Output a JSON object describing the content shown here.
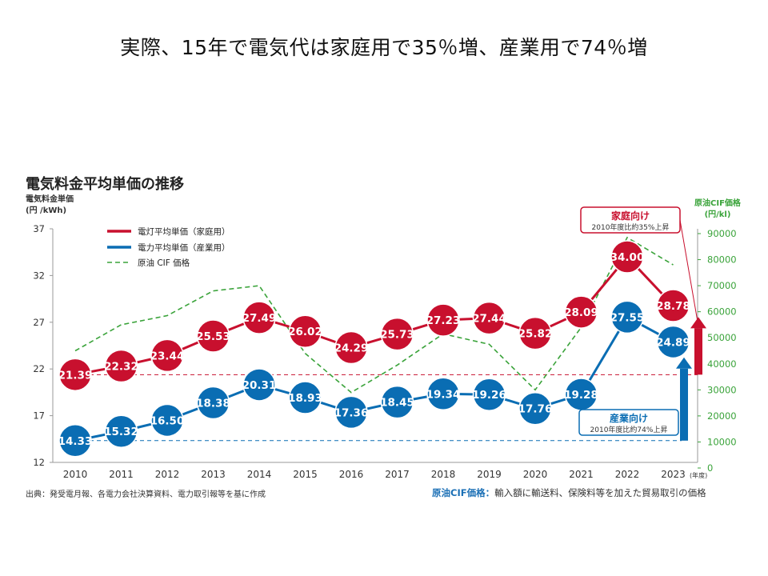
{
  "slide_title": "実際、15年で電気代は家庭用で35％増、産業用で74％増",
  "chart_data": {
    "type": "line",
    "title": "電気料金平均単価の推移",
    "ylabel_left_line1": "電気料金単価",
    "ylabel_left_line2": "(円 /kWh)",
    "ylabel_right_line1": "原油CIF価格",
    "ylabel_right_line2": "(円/kl)",
    "x_suffix": "(年度)",
    "categories": [
      "2010",
      "2011",
      "2012",
      "2013",
      "2014",
      "2015",
      "2016",
      "2017",
      "2018",
      "2019",
      "2020",
      "2021",
      "2022",
      "2023"
    ],
    "ylim_left": [
      12,
      37
    ],
    "yticks_left": [
      12,
      17,
      22,
      27,
      32,
      37
    ],
    "ylim_right": [
      0,
      90000
    ],
    "yticks_right": [
      0,
      10000,
      20000,
      30000,
      40000,
      50000,
      60000,
      70000,
      80000,
      90000
    ],
    "series": [
      {
        "name": "電灯平均単価（家庭用）",
        "color": "#c8102e",
        "axis": "left",
        "values": [
          21.39,
          22.32,
          23.44,
          25.53,
          27.49,
          26.02,
          24.29,
          25.73,
          27.23,
          27.44,
          25.82,
          28.09,
          34.0,
          28.78
        ],
        "labels": [
          "21.39",
          "22.32",
          "23.44",
          "25.53",
          "27.49",
          "26.02",
          "24.29",
          "25.73",
          "27.23",
          "27.44",
          "25.82",
          "28.09",
          "34.00",
          "28.78"
        ]
      },
      {
        "name": "電力平均単価（産業用）",
        "color": "#0a6db3",
        "axis": "left",
        "values": [
          14.33,
          15.32,
          16.5,
          18.38,
          20.31,
          18.93,
          17.36,
          18.45,
          19.34,
          19.26,
          17.76,
          19.28,
          27.55,
          24.89
        ],
        "labels": [
          "14.33",
          "15.32",
          "16.50",
          "18.38",
          "20.31",
          "18.93",
          "17.36",
          "18.45",
          "19.34",
          "19.26",
          "17.76",
          "19.28",
          "27.55",
          "24.89"
        ]
      },
      {
        "name": "原油 CIF 価格",
        "color": "#3aa33a",
        "axis": "right",
        "dashed": true,
        "values": [
          45000,
          55000,
          58500,
          68000,
          70000,
          44000,
          29000,
          39500,
          51500,
          47500,
          30000,
          54000,
          88500,
          78000
        ]
      }
    ],
    "callouts": {
      "household": {
        "title": "家庭向け",
        "sub": "2010年度比約35%上昇",
        "color": "#c8102e"
      },
      "industrial": {
        "title": "産業向け",
        "sub": "2010年度比約74%上昇",
        "color": "#0a6db3"
      }
    },
    "grid": false,
    "legend": "top-left"
  },
  "source_note": "出典：発受電月報、各電力会社決算資料、電力取引報等を基に作成",
  "cif_note_head": "原油CIF価格：",
  "cif_note_body": "輸入額に輸送料、保険料等を加えた貿易取引の価格"
}
